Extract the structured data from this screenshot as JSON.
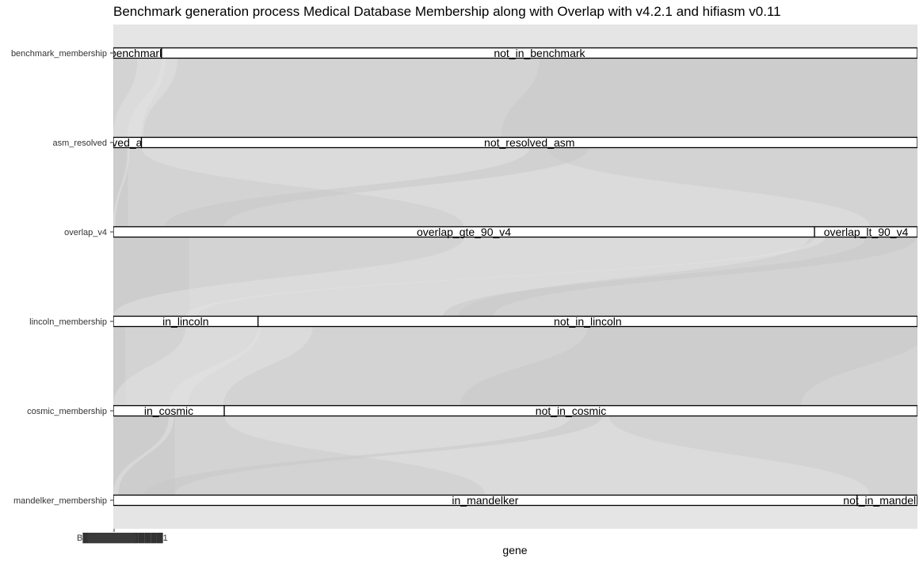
{
  "chart_data": {
    "type": "alluvial",
    "title": "Benchmark generation process Medical Database Membership along with Overlap with v4.2.1 and hifiasm v0.11",
    "xlabel": "gene",
    "ylabel": "",
    "x_tick_label": "B█████████████1",
    "total": 100,
    "axes": [
      {
        "name": "benchmark_membership",
        "strata": [
          {
            "label": "benchmark",
            "value": 6
          },
          {
            "label": "not_in_benchmark",
            "value": 94
          }
        ]
      },
      {
        "name": "asm_resolved",
        "strata": [
          {
            "label": "solved_asm",
            "value": 3.5
          },
          {
            "label": "not_resolved_asm",
            "value": 96.5
          }
        ]
      },
      {
        "name": "overlap_v4",
        "strata": [
          {
            "label": "overlap_gte_90_v4",
            "value": 87.2
          },
          {
            "label": "overlap_lt_90_v4",
            "value": 12.8
          }
        ]
      },
      {
        "name": "lincoln_membership",
        "strata": [
          {
            "label": "in_lincoln",
            "value": 18
          },
          {
            "label": "not_in_lincoln",
            "value": 82
          }
        ]
      },
      {
        "name": "cosmic_membership",
        "strata": [
          {
            "label": "in_cosmic",
            "value": 13.8
          },
          {
            "label": "not_in_cosmic",
            "value": 86.2
          }
        ]
      },
      {
        "name": "mandelker_membership",
        "strata": [
          {
            "label": "in_mandelker",
            "value": 92.5
          },
          {
            "label": "not_in_mandelker",
            "value": 7.5
          }
        ]
      }
    ],
    "grid": true
  }
}
